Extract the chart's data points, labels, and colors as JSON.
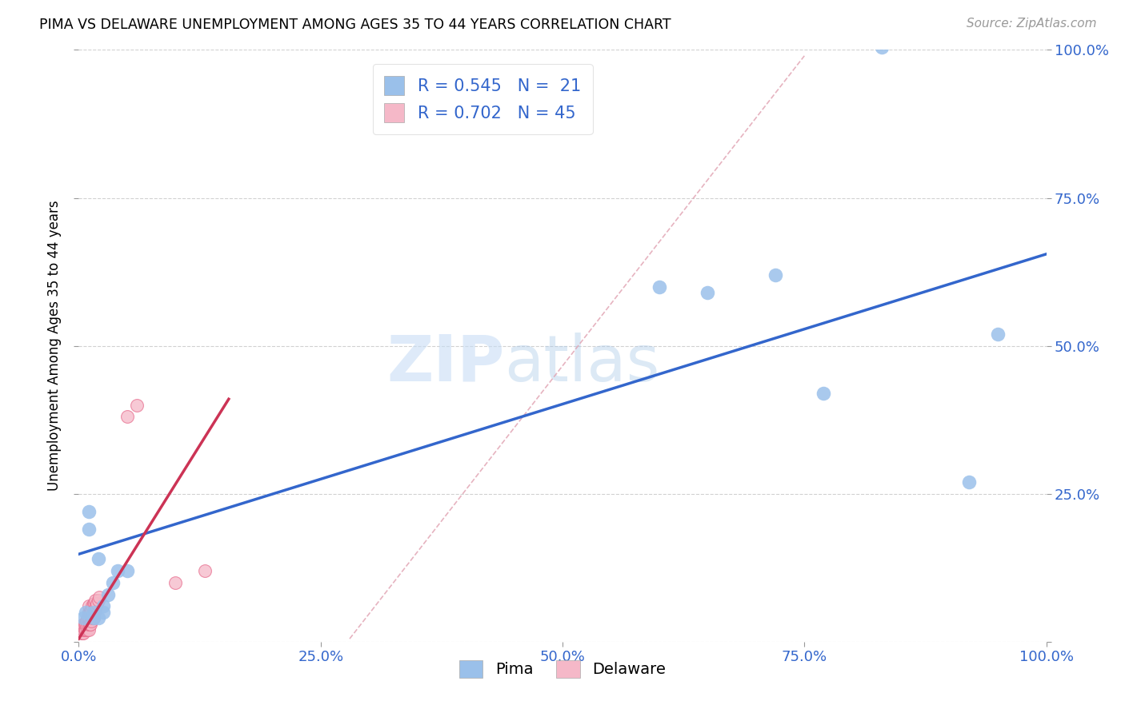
{
  "title": "PIMA VS DELAWARE UNEMPLOYMENT AMONG AGES 35 TO 44 YEARS CORRELATION CHART",
  "source": "Source: ZipAtlas.com",
  "ylabel": "Unemployment Among Ages 35 to 44 years",
  "xlim": [
    0.0,
    1.0
  ],
  "ylim": [
    0.0,
    1.0
  ],
  "xtick_vals": [
    0.0,
    0.25,
    0.5,
    0.75,
    1.0
  ],
  "xtick_labels": [
    "0.0%",
    "25.0%",
    "50.0%",
    "75.0%",
    "100.0%"
  ],
  "ytick_vals": [
    0.0,
    0.25,
    0.5,
    0.75,
    1.0
  ],
  "right_ytick_labels": [
    "",
    "25.0%",
    "50.0%",
    "75.0%",
    "100.0%"
  ],
  "pima_color": "#9ac0ea",
  "delaware_color": "#f5b8c8",
  "delaware_edge_color": "#e87090",
  "pima_line_color": "#3366cc",
  "delaware_line_color": "#cc3355",
  "grid_color": "#cccccc",
  "R_pima": 0.545,
  "N_pima": 21,
  "R_delaware": 0.702,
  "N_delaware": 45,
  "watermark_zip": "ZIP",
  "watermark_atlas": "atlas",
  "background_color": "#ffffff",
  "pima_x": [
    0.005,
    0.007,
    0.01,
    0.01,
    0.015,
    0.015,
    0.02,
    0.02,
    0.025,
    0.025,
    0.03,
    0.035,
    0.04,
    0.05,
    0.6,
    0.65,
    0.72,
    0.77,
    0.83,
    0.92,
    0.95
  ],
  "pima_y": [
    0.04,
    0.05,
    0.19,
    0.22,
    0.04,
    0.05,
    0.14,
    0.04,
    0.05,
    0.06,
    0.08,
    0.1,
    0.12,
    0.12,
    0.6,
    0.59,
    0.62,
    0.42,
    1.005,
    0.27,
    0.52
  ],
  "delaware_x": [
    0.003,
    0.003,
    0.004,
    0.004,
    0.005,
    0.005,
    0.005,
    0.005,
    0.006,
    0.006,
    0.007,
    0.007,
    0.008,
    0.008,
    0.009,
    0.009,
    0.009,
    0.01,
    0.01,
    0.01,
    0.01,
    0.01,
    0.011,
    0.011,
    0.012,
    0.012,
    0.013,
    0.013,
    0.014,
    0.014,
    0.015,
    0.015,
    0.015,
    0.016,
    0.016,
    0.017,
    0.017,
    0.018,
    0.019,
    0.02,
    0.021,
    0.05,
    0.06,
    0.1,
    0.13
  ],
  "delaware_y": [
    0.015,
    0.02,
    0.015,
    0.025,
    0.015,
    0.02,
    0.025,
    0.03,
    0.02,
    0.03,
    0.02,
    0.03,
    0.025,
    0.035,
    0.02,
    0.03,
    0.04,
    0.02,
    0.03,
    0.04,
    0.05,
    0.06,
    0.03,
    0.05,
    0.03,
    0.05,
    0.035,
    0.055,
    0.04,
    0.06,
    0.04,
    0.05,
    0.065,
    0.05,
    0.065,
    0.055,
    0.07,
    0.06,
    0.065,
    0.07,
    0.075,
    0.38,
    0.4,
    0.1,
    0.12
  ],
  "pima_line_x": [
    0.0,
    1.0
  ],
  "pima_line_y": [
    0.148,
    0.655
  ],
  "delaware_line_x": [
    0.0,
    0.155
  ],
  "delaware_line_y": [
    0.005,
    0.41
  ],
  "dashed_line_x": [
    0.28,
    0.75
  ],
  "dashed_line_y": [
    0.005,
    0.99
  ]
}
